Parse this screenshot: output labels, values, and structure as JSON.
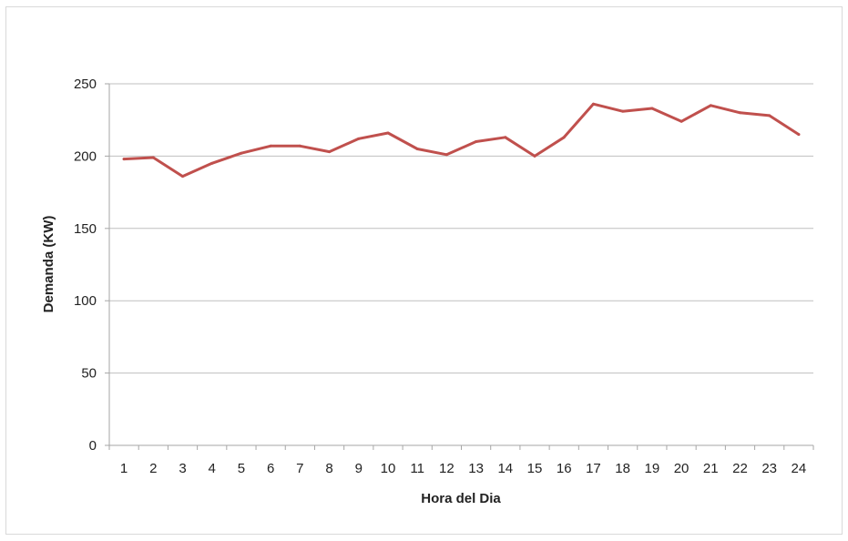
{
  "chart_data": {
    "type": "line",
    "title": "",
    "xlabel": "Hora del Dia",
    "ylabel": "Demanda (KW)",
    "ylim": [
      0,
      250
    ],
    "yticks": [
      0,
      50,
      100,
      150,
      200,
      250
    ],
    "grid": true,
    "legend": "none",
    "categories": [
      "1",
      "2",
      "3",
      "4",
      "5",
      "6",
      "7",
      "8",
      "9",
      "10",
      "11",
      "12",
      "13",
      "14",
      "15",
      "16",
      "17",
      "18",
      "19",
      "20",
      "21",
      "22",
      "23",
      "24"
    ],
    "series": [
      {
        "color": "#c0504d",
        "values": [
          198,
          199,
          186,
          195,
          202,
          207,
          207,
          203,
          212,
          216,
          205,
          201,
          210,
          213,
          200,
          213,
          236,
          231,
          233,
          224,
          235,
          230,
          228,
          215
        ]
      }
    ]
  }
}
